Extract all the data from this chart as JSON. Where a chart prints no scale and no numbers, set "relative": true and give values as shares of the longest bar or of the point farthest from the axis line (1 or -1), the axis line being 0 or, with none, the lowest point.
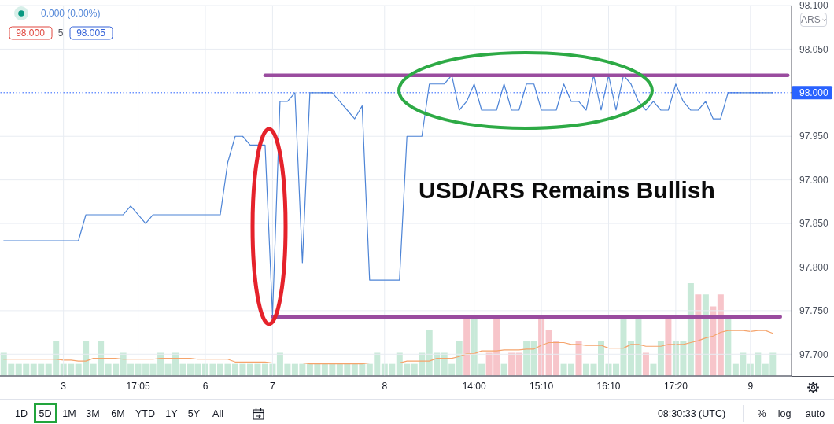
{
  "chart_data": [
    {
      "type": "line",
      "title": "USD/ARS Remains Bullish",
      "categories": [
        null,
        null,
        null,
        null,
        null,
        null,
        null,
        null,
        "3",
        null,
        null,
        null,
        null,
        null,
        null,
        null,
        null,
        null,
        "17:05",
        null,
        null,
        null,
        null,
        null,
        null,
        null,
        null,
        "6",
        null,
        null,
        null,
        null,
        null,
        null,
        null,
        null,
        "7",
        null,
        null,
        null,
        null,
        null,
        null,
        null,
        null,
        null,
        null,
        null,
        null,
        null,
        null,
        "8",
        null,
        null,
        null,
        null,
        null,
        null,
        null,
        null,
        null,
        null,
        null,
        "14:00",
        null,
        null,
        null,
        null,
        null,
        null,
        null,
        null,
        "15:10",
        null,
        null,
        null,
        null,
        null,
        null,
        null,
        null,
        "16:10",
        null,
        null,
        null,
        null,
        null,
        null,
        null,
        null,
        "17:20",
        null,
        null,
        null,
        null,
        null,
        null,
        null,
        null,
        null,
        "9",
        null,
        null,
        null,
        null,
        null
      ],
      "series": [
        {
          "color": "#4d84d6",
          "values": [
            97.83,
            97.83,
            97.83,
            97.83,
            97.83,
            97.83,
            97.83,
            97.83,
            97.83,
            97.83,
            97.83,
            97.86,
            97.86,
            97.86,
            97.86,
            97.86,
            97.86,
            97.87,
            97.86,
            97.85,
            97.86,
            97.86,
            97.86,
            97.86,
            97.86,
            97.86,
            97.86,
            97.86,
            97.86,
            97.86,
            97.92,
            97.95,
            97.95,
            97.94,
            97.94,
            97.94,
            97.745,
            97.99,
            97.99,
            98.0,
            97.805,
            98.0,
            98.0,
            98.0,
            98.0,
            97.99,
            97.98,
            97.97,
            97.985,
            97.785,
            97.785,
            97.785,
            97.785,
            97.785,
            97.95,
            97.95,
            97.95,
            98.01,
            98.01,
            98.01,
            98.02,
            97.98,
            97.99,
            98.01,
            97.98,
            97.98,
            97.98,
            98.01,
            97.98,
            97.98,
            98.01,
            98.01,
            97.98,
            97.98,
            97.98,
            98.01,
            97.99,
            97.99,
            97.98,
            98.02,
            97.98,
            98.02,
            97.98,
            98.02,
            98.01,
            97.99,
            97.98,
            97.99,
            97.98,
            97.98,
            98.01,
            97.99,
            97.98,
            97.98,
            97.99,
            97.97,
            97.97,
            98.0,
            98.0,
            98.0,
            98.0,
            98.0,
            98.0,
            98.0,
            null,
            null
          ]
        },
        {
          "color": "#9a4c9f",
          "values": [
            null,
            null,
            null,
            null,
            null,
            null,
            null,
            null,
            null,
            null,
            null,
            null,
            null,
            null,
            null,
            null,
            null,
            null,
            null,
            null,
            null,
            null,
            null,
            null,
            null,
            null,
            null,
            null,
            null,
            null,
            null,
            null,
            null,
            null,
            null,
            98.02,
            98.02,
            98.02,
            98.02,
            98.02,
            98.02,
            98.02,
            98.02,
            98.02,
            98.02,
            98.02,
            98.02,
            98.02,
            98.02,
            98.02,
            98.02,
            98.02,
            98.02,
            98.02,
            98.02,
            98.02,
            98.02,
            98.02,
            98.02,
            98.02,
            98.02,
            98.02,
            98.02,
            98.02,
            98.02,
            98.02,
            98.02,
            98.02,
            98.02,
            98.02,
            98.02,
            98.02,
            98.02,
            98.02,
            98.02,
            98.02,
            98.02,
            98.02,
            98.02,
            98.02,
            98.02,
            98.02,
            98.02,
            98.02,
            98.02,
            98.02,
            98.02,
            98.02,
            98.02,
            98.02,
            98.02,
            98.02,
            98.02,
            98.02,
            98.02,
            98.02,
            98.02,
            98.02,
            98.02,
            98.02,
            98.02,
            98.02,
            98.02,
            98.02,
            98.02,
            98.02
          ]
        },
        {
          "color": "#9a4c9f",
          "values": [
            null,
            null,
            null,
            null,
            null,
            null,
            null,
            null,
            null,
            null,
            null,
            null,
            null,
            null,
            null,
            null,
            null,
            null,
            null,
            null,
            null,
            null,
            null,
            null,
            null,
            null,
            null,
            null,
            null,
            null,
            null,
            null,
            null,
            null,
            null,
            null,
            97.743,
            97.743,
            97.743,
            97.743,
            97.743,
            97.743,
            97.743,
            97.743,
            97.743,
            97.743,
            97.743,
            97.743,
            97.743,
            97.743,
            97.743,
            97.743,
            97.743,
            97.743,
            97.743,
            97.743,
            97.743,
            97.743,
            97.743,
            97.743,
            97.743,
            97.743,
            97.743,
            97.743,
            97.743,
            97.743,
            97.743,
            97.743,
            97.743,
            97.743,
            97.743,
            97.743,
            97.743,
            97.743,
            97.743,
            97.743,
            97.743,
            97.743,
            97.743,
            97.743,
            97.743,
            97.743,
            97.743,
            97.743,
            97.743,
            97.743,
            97.743,
            97.743,
            97.743,
            97.743,
            97.743,
            97.743,
            97.743,
            97.743,
            97.743,
            97.743,
            97.743,
            97.743,
            97.743,
            97.743,
            97.743,
            97.743,
            97.743,
            97.743,
            97.743,
            null
          ]
        }
      ],
      "ylim": [
        97.675,
        98.1
      ],
      "yticks": [
        {
          "value": 97.7,
          "label": "97.700"
        },
        {
          "value": 97.75,
          "label": "97.750"
        },
        {
          "value": 97.8,
          "label": "97.800"
        },
        {
          "value": 97.85,
          "label": "97.850"
        },
        {
          "value": 97.9,
          "label": "97.900"
        },
        {
          "value": 97.95,
          "label": "97.950"
        },
        {
          "value": 98.05,
          "label": "98.050"
        },
        {
          "value": 98.1,
          "label": "98.100"
        }
      ],
      "grid": true,
      "ref_lines": [
        {
          "axis": "y",
          "value": 98.0,
          "label": "98.000",
          "color": "#2962ff",
          "line_style": "dotted"
        }
      ],
      "annotations": [
        "0.000 (0.00%)",
        "98.000",
        "5",
        "98.005",
        "ARS",
        "1D",
        "5D",
        "1M",
        "3M",
        "6M",
        "YTD",
        "1Y",
        "5Y",
        "All",
        "08:30:33 (UTC)",
        "%",
        "log",
        "auto"
      ]
    },
    {
      "type": "bar",
      "relative": true,
      "categories": [
        null,
        null,
        null,
        null,
        null,
        null,
        null,
        null,
        null,
        null,
        null,
        null,
        null,
        null,
        null,
        null,
        null,
        null,
        null,
        null,
        null,
        null,
        null,
        null,
        null,
        null,
        null,
        null,
        null,
        null,
        null,
        null,
        null,
        null,
        null,
        null,
        null,
        null,
        null,
        null,
        null,
        null,
        null,
        null,
        null,
        null,
        null,
        null,
        null,
        null,
        null,
        null,
        null,
        null,
        null,
        null,
        null,
        null,
        null,
        null,
        null,
        null,
        null,
        null,
        null,
        null,
        null,
        null,
        null,
        null,
        null,
        null,
        null,
        null,
        null,
        null,
        null,
        null,
        null,
        null,
        null,
        null,
        null,
        null,
        null,
        null,
        null,
        null,
        null,
        null,
        null,
        null,
        null,
        null,
        null,
        null,
        null,
        null,
        null,
        null,
        null,
        null,
        null,
        null,
        null,
        null
      ],
      "series": [
        {
          "colors": [
            "#c8e9d8",
            "#c8e9d8",
            "#c8e9d8",
            "#c8e9d8",
            "#c8e9d8",
            "#c8e9d8",
            "#c8e9d8",
            "#c8e9d8",
            "#c8e9d8",
            "#c8e9d8",
            "#c8e9d8",
            "#c8e9d8",
            "#c8e9d8",
            "#c8e9d8",
            "#c8e9d8",
            "#c8e9d8",
            "#c8e9d8",
            "#c8e9d8",
            "#c8e9d8",
            "#c8e9d8",
            "#c8e9d8",
            "#c8e9d8",
            "#c8e9d8",
            "#c8e9d8",
            "#c8e9d8",
            "#c8e9d8",
            "#c8e9d8",
            "#c8e9d8",
            "#c8e9d8",
            "#c8e9d8",
            "#c8e9d8",
            "#c8e9d8",
            "#c8e9d8",
            "#c8e9d8",
            "#c8e9d8",
            "#c8e9d8",
            "#c8e9d8",
            "#c8e9d8",
            "#c8e9d8",
            "#c8e9d8",
            "#c8e9d8",
            "#c8e9d8",
            "#c8e9d8",
            "#c8e9d8",
            "#c8e9d8",
            "#c8e9d8",
            "#c8e9d8",
            "#c8e9d8",
            "#c8e9d8",
            "#c8e9d8",
            "#c8e9d8",
            "#c8e9d8",
            "#c8e9d8",
            "#c8e9d8",
            "#c8e9d8",
            "#c8e9d8",
            "#c8e9d8",
            "#c8e9d8",
            "#c8e9d8",
            "#c8e9d8",
            "#c8e9d8",
            "#c8e9d8",
            "#f7c5ca",
            "#c8e9d8",
            "#c8e9d8",
            "#f7c5ca",
            "#f7c5ca",
            "#c8e9d8",
            "#f7c5ca",
            "#f7c5ca",
            "#c8e9d8",
            "#c8e9d8",
            "#f7c5ca",
            "#f7c5ca",
            "#f7c5ca",
            "#c8e9d8",
            "#c8e9d8",
            "#f7c5ca",
            "#c8e9d8",
            "#c8e9d8",
            "#c8e9d8",
            "#c8e9d8",
            "#c8e9d8",
            "#c8e9d8",
            "#c8e9d8",
            "#c8e9d8",
            "#f7c5ca",
            "#c8e9d8",
            "#c8e9d8",
            "#f7c5ca",
            "#c8e9d8",
            "#c8e9d8",
            "#c8e9d8",
            "#f7c5ca",
            "#c8e9d8",
            "#f7c5ca",
            "#f7c5ca",
            "#c8e9d8",
            "#c8e9d8",
            "#c8e9d8",
            "#c8e9d8",
            "#c8e9d8",
            "#c8e9d8",
            "#c8e9d8",
            "#c8e9d8",
            "#c8e9d8"
          ],
          "values": [
            0.25,
            0.13,
            0.13,
            0.13,
            0.13,
            0.13,
            0.13,
            0.38,
            0.13,
            0.13,
            0.13,
            0.38,
            0.13,
            0.38,
            0.13,
            0.13,
            0.25,
            0.13,
            0.13,
            0.13,
            0.13,
            0.25,
            0.13,
            0.25,
            0.13,
            0.13,
            0.13,
            0.13,
            0.13,
            0.13,
            0.13,
            0.13,
            0.13,
            0.13,
            0.13,
            0.13,
            0.13,
            0.25,
            0.13,
            0.13,
            0.13,
            0.13,
            0.13,
            0.13,
            0.13,
            0.13,
            0.13,
            0.13,
            0.13,
            0.13,
            0.25,
            0.13,
            0.13,
            0.25,
            0.13,
            0.13,
            0.25,
            0.5,
            0.25,
            0.25,
            0.13,
            0.38,
            0.63,
            0.63,
            0.13,
            0.25,
            0.63,
            0.13,
            0.25,
            0.25,
            0.38,
            0.38,
            0.63,
            0.5,
            0.38,
            0.13,
            0.13,
            0.38,
            0.13,
            0.13,
            0.38,
            0.13,
            0.13,
            0.63,
            0.38,
            0.63,
            0.25,
            0.13,
            0.38,
            0.63,
            0.38,
            0.38,
            1,
            0.88,
            0.88,
            0.75,
            0.88,
            0.63,
            0.13,
            0.25,
            0.13,
            0.25,
            0.13,
            0.25,
            null,
            null
          ]
        },
        {
          "type": "line",
          "color": "#f5a46c",
          "values": [
            0.18,
            0.18,
            0.18,
            0.18,
            0.18,
            0.18,
            0.18,
            0.18,
            0.17,
            0.17,
            0.16,
            0.16,
            0.19,
            0.19,
            0.19,
            0.19,
            0.18,
            0.18,
            0.18,
            0.18,
            0.18,
            0.19,
            0.19,
            0.19,
            0.19,
            0.19,
            0.18,
            0.18,
            0.18,
            0.18,
            0.18,
            0.15,
            0.15,
            0.15,
            0.15,
            0.15,
            0.14,
            0.14,
            0.14,
            0.14,
            0.14,
            0.13,
            0.13,
            0.13,
            0.13,
            0.13,
            0.13,
            0.13,
            0.13,
            0.14,
            0.14,
            0.14,
            0.14,
            0.14,
            0.16,
            0.16,
            0.16,
            0.16,
            0.19,
            0.19,
            0.19,
            0.21,
            0.24,
            0.24,
            0.27,
            0.27,
            0.27,
            0.28,
            0.28,
            0.28,
            0.29,
            0.29,
            0.33,
            0.36,
            0.36,
            0.36,
            0.34,
            0.34,
            0.33,
            0.33,
            0.33,
            0.3,
            0.3,
            0.3,
            0.34,
            0.34,
            0.32,
            0.32,
            0.32,
            0.34,
            0.34,
            0.34,
            0.36,
            0.38,
            0.41,
            0.43,
            0.47,
            0.49,
            0.49,
            0.49,
            0.48,
            0.49,
            0.49,
            0.46,
            null,
            null
          ]
        }
      ]
    }
  ]
}
